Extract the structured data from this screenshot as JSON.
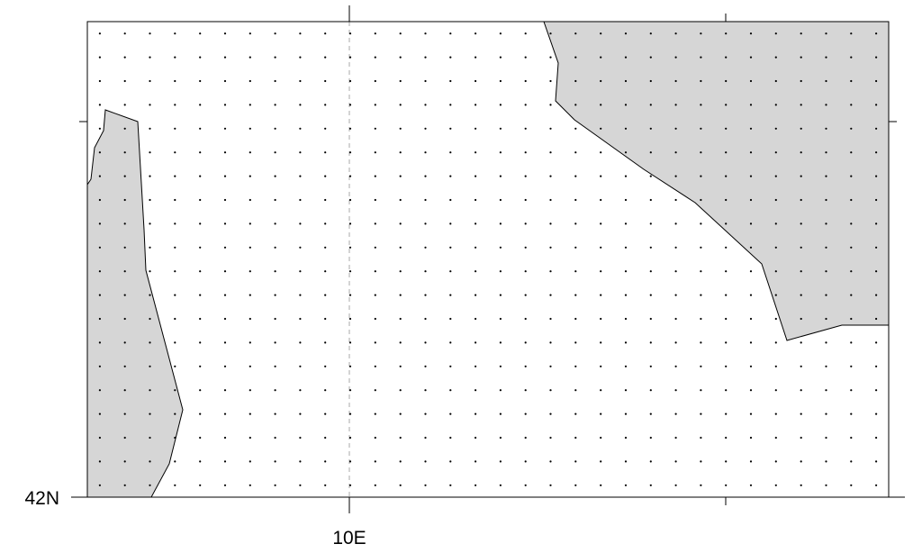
{
  "map": {
    "axis_labels": {
      "lat": "42N",
      "lon": "10E"
    },
    "colors": {
      "land": "#d6d6d6",
      "coastline": "#000000",
      "dots": "#000000",
      "frame": "#000000",
      "gridline": "#aaaaaa",
      "background": "#ffffff"
    },
    "dot_grid": {
      "columns": 32,
      "rows": 20
    },
    "gridline_style": "dashed",
    "land_masses": [
      "west-coast-land",
      "northeast-land"
    ]
  }
}
